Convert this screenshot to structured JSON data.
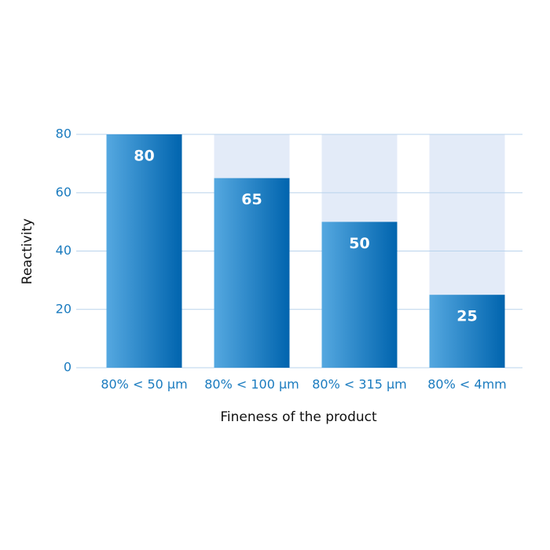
{
  "chart_data": {
    "type": "bar",
    "x_label": "Fineness of the product",
    "y_label": "Reactivity",
    "categories": [
      "80% < 50 µm",
      "80% < 100 µm",
      "80% < 315 µm",
      "80% < 4mm"
    ],
    "values": [
      80,
      65,
      50,
      25
    ],
    "color": "#0a70b8",
    "ylim": [
      0,
      80
    ],
    "yticks": [
      0,
      20,
      40,
      60,
      80
    ],
    "grid": true
  }
}
